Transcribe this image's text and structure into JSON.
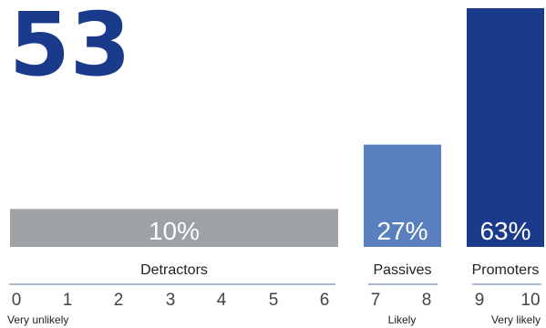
{
  "chart_data": {
    "type": "bar",
    "score": "53",
    "categories": [
      "Detractors",
      "Passives",
      "Promoters"
    ],
    "values": [
      10,
      27,
      63
    ],
    "value_labels": [
      "10%",
      "27%",
      "63%"
    ],
    "ylim": [
      0,
      63
    ],
    "scale_ticks": [
      "0",
      "1",
      "2",
      "3",
      "4",
      "5",
      "6",
      "7",
      "8",
      "9",
      "10"
    ],
    "scale_anchors": [
      "Very unlikely",
      "Likely",
      "Very likely"
    ],
    "groups": [
      {
        "name": "Detractors",
        "range": [
          0,
          6
        ]
      },
      {
        "name": "Passives",
        "range": [
          7,
          8
        ]
      },
      {
        "name": "Promoters",
        "range": [
          9,
          10
        ]
      }
    ],
    "colors": {
      "score": "#1a3a8c",
      "detractors": "#9ea1a6",
      "passives": "#5a7fbf",
      "promoters": "#1a3a8c",
      "divider": "#8a9fcc"
    }
  }
}
